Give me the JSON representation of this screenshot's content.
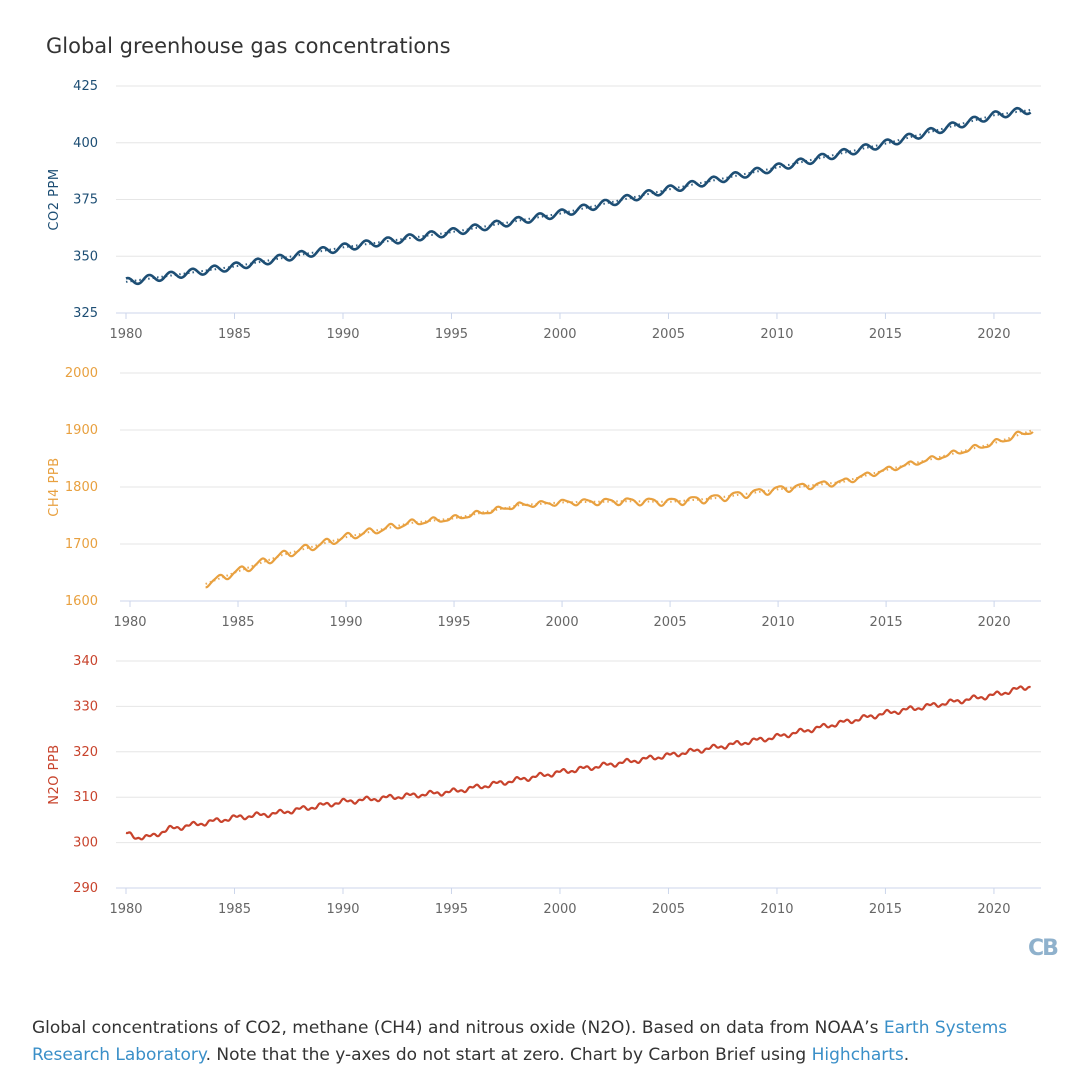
{
  "title": "Global greenhouse gas concentrations",
  "logo": "CB",
  "caption": {
    "text1": "Global concentrations of CO2, methane (CH4) and nitrous oxide (N2O). Based on data from NOAA’s ",
    "link1": "Earth Systems Research Laboratory",
    "text2": ". Note that the y-axes do not start at zero. Chart by Carbon Brief using ",
    "link2": "Highcharts",
    "text3": "."
  },
  "colors": {
    "co2": "#1d4e74",
    "ch4": "#e8a03f",
    "n2o": "#c8432c",
    "grid": "#e6e6e6",
    "axis": "#ccd6eb",
    "tick": "#666666"
  },
  "chart_data": [
    {
      "type": "line",
      "ylabel": "CO2 PPM",
      "color": "#1d4e74",
      "xlim": [
        1980,
        2022
      ],
      "ylim": [
        325,
        425
      ],
      "yticks": [
        325,
        350,
        375,
        400,
        425
      ],
      "xticks": [
        1980,
        1985,
        1990,
        1995,
        2000,
        2005,
        2010,
        2015,
        2020
      ],
      "seasonal_amplitude": 1.6,
      "series": [
        {
          "style": "solid-seasonal",
          "x": [
            1980,
            1985,
            1990,
            1995,
            2000,
            2005,
            2010,
            2015,
            2020,
            2021.7
          ],
          "values": [
            338.7,
            345.5,
            353.9,
            360.6,
            368.8,
            379.4,
            389.1,
            399.6,
            412.1,
            414.5
          ]
        },
        {
          "style": "dotted-trend",
          "x": [
            1980,
            1985,
            1990,
            1995,
            2000,
            2005,
            2010,
            2015,
            2020,
            2021.7
          ],
          "values": [
            338.7,
            345.5,
            353.9,
            360.6,
            368.8,
            379.4,
            389.1,
            399.6,
            412.1,
            414.5
          ]
        }
      ]
    },
    {
      "type": "line",
      "ylabel": "CH4 PPB",
      "color": "#e8a03f",
      "xlim": [
        1980,
        2022
      ],
      "ylim": [
        1600,
        2000
      ],
      "yticks": [
        1600,
        1700,
        1800,
        1900,
        2000
      ],
      "xticks": [
        1980,
        1985,
        1990,
        1995,
        2000,
        2005,
        2010,
        2015,
        2020
      ],
      "seasonal_amplitude": 5,
      "series": [
        {
          "style": "solid-seasonal",
          "x": [
            1983.5,
            1985,
            1987,
            1990,
            1993,
            1995,
            1998,
            2000,
            2003,
            2005,
            2007,
            2010,
            2013,
            2015,
            2017,
            2020,
            2021.8
          ],
          "values": [
            1630,
            1652,
            1680,
            1712,
            1737,
            1745,
            1768,
            1773,
            1775,
            1774,
            1780,
            1796,
            1809,
            1830,
            1848,
            1877,
            1900
          ]
        },
        {
          "style": "dotted-trend",
          "x": [
            1983.5,
            1985,
            1987,
            1990,
            1993,
            1995,
            1998,
            2000,
            2003,
            2005,
            2007,
            2010,
            2013,
            2015,
            2017,
            2020,
            2021.8
          ],
          "values": [
            1630,
            1652,
            1680,
            1712,
            1737,
            1745,
            1768,
            1773,
            1775,
            1774,
            1780,
            1796,
            1809,
            1830,
            1848,
            1877,
            1900
          ]
        }
      ]
    },
    {
      "type": "line",
      "ylabel": "N2O PPB",
      "color": "#c8432c",
      "xlim": [
        1980,
        2022
      ],
      "ylim": [
        290,
        340
      ],
      "yticks": [
        290,
        300,
        310,
        320,
        330,
        340
      ],
      "xticks": [
        1980,
        1985,
        1990,
        1995,
        2000,
        2005,
        2010,
        2015,
        2020
      ],
      "seasonal_amplitude": 0.4,
      "series": [
        {
          "style": "solid-seasonal",
          "x": [
            1980,
            1980.5,
            1981,
            1982,
            1985,
            1987,
            1990,
            1995,
            2000,
            2005,
            2010,
            2015,
            2020,
            2021.7
          ],
          "values": [
            302,
            301.2,
            301.1,
            303,
            305.5,
            306.5,
            309,
            311.2,
            315.5,
            319.2,
            323.3,
            328.5,
            332.5,
            334.5
          ]
        }
      ]
    }
  ]
}
